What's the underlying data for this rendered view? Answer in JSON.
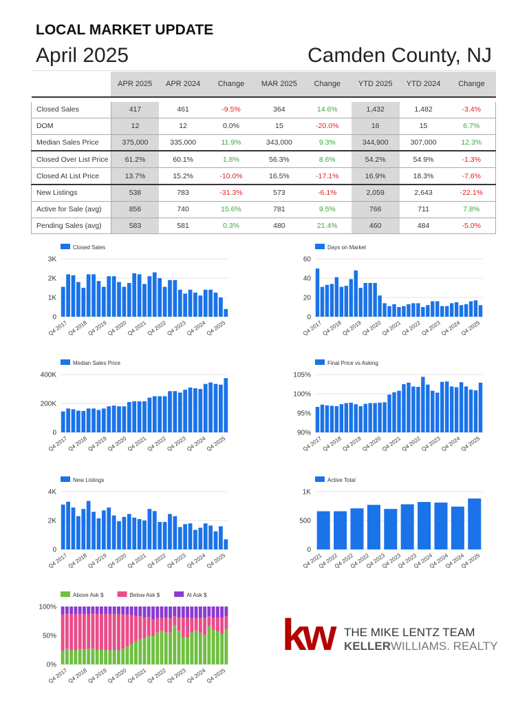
{
  "header": {
    "title": "LOCAL MARKET UPDATE",
    "month": "April 2025",
    "county": "Camden County, NJ"
  },
  "table": {
    "columns": [
      "APR 2025",
      "APR 2024",
      "Change",
      "MAR 2025",
      "Change",
      "YTD 2025",
      "YTD 2024",
      "Change"
    ],
    "rows": [
      {
        "metric": "Closed Sales",
        "values": [
          "417",
          "461",
          "-9.5%",
          "364",
          "14.6%",
          "1,432",
          "1,482",
          "-3.4%"
        ]
      },
      {
        "metric": "DOM",
        "values": [
          "12",
          "12",
          "0.0%",
          "15",
          "-20.0%",
          "16",
          "15",
          "6.7%"
        ]
      },
      {
        "metric": "Median Sales Price",
        "values": [
          "375,000",
          "335,000",
          "11.9%",
          "343,000",
          "9.3%",
          "344,900",
          "307,000",
          "12.3%"
        ]
      },
      {
        "metric": "Closed Over List Price",
        "values": [
          "61.2%",
          "60.1%",
          "1.8%",
          "56.3%",
          "8.6%",
          "54.2%",
          "54.9%",
          "-1.3%"
        ]
      },
      {
        "metric": "Closed At List Price",
        "values": [
          "13.7%",
          "15.2%",
          "-10.0%",
          "16.5%",
          "-17.1%",
          "16.9%",
          "18.3%",
          "-7.6%"
        ]
      },
      {
        "metric": "New Listings",
        "values": [
          "538",
          "783",
          "-31.3%",
          "573",
          "-6.1%",
          "2,059",
          "2,643",
          "-22.1%"
        ]
      },
      {
        "metric": "Active for Sale (avg)",
        "values": [
          "856",
          "740",
          "15.6%",
          "781",
          "9.5%",
          "766",
          "711",
          "7.8%"
        ]
      },
      {
        "metric": "Pending Sales (avg)",
        "values": [
          "583",
          "581",
          "0.3%",
          "480",
          "21.4%",
          "460",
          "484",
          "-5.0%"
        ]
      }
    ]
  },
  "colors": {
    "bar": "#1a73e8",
    "positive": "#3aa83a",
    "negative": "#e02020",
    "above": "#6fbf40",
    "below": "#ea4c89",
    "at": "#8a3ad1",
    "kw_red": "#b40101"
  },
  "chart_data": [
    {
      "type": "bar",
      "legend": "Closed Sales",
      "x_tick_labels": [
        "Q4 2017",
        "Q4 2018",
        "Q4 2019",
        "Q4 2020",
        "Q4 2021",
        "Q4 2022",
        "Q4 2023",
        "Q4 2024",
        "Q4 2025"
      ],
      "y_ticks": [
        "0",
        "1K",
        "2K",
        "3K"
      ],
      "ylim": [
        0,
        3000
      ],
      "values": [
        1550,
        2200,
        2150,
        1800,
        1500,
        2200,
        2200,
        1850,
        1550,
        2100,
        2100,
        1800,
        1550,
        1750,
        2250,
        2200,
        1700,
        2100,
        2300,
        2000,
        1550,
        1900,
        1900,
        1400,
        1200,
        1400,
        1250,
        1100,
        1400,
        1400,
        1250,
        1000,
        400
      ]
    },
    {
      "type": "bar",
      "legend": "Days on Market",
      "x_tick_labels": [
        "Q4 2017",
        "Q4 2018",
        "Q4 2019",
        "Q4 2020",
        "Q4 2021",
        "Q4 2022",
        "Q4 2023",
        "Q4 2024",
        "Q4 2025"
      ],
      "y_ticks": [
        "0",
        "20",
        "40",
        "60"
      ],
      "ylim": [
        0,
        60
      ],
      "values": [
        50,
        31,
        33,
        34,
        41,
        31,
        32,
        39,
        48,
        30,
        35,
        35,
        35,
        22,
        14,
        11,
        13,
        10,
        11,
        13,
        14,
        14,
        10,
        12,
        16,
        16,
        11,
        11,
        14,
        15,
        12,
        13,
        16,
        17,
        12
      ]
    },
    {
      "type": "bar",
      "legend": "Median Sales Price",
      "x_tick_labels": [
        "Q4 2017",
        "Q4 2018",
        "Q4 2019",
        "Q4 2020",
        "Q4 2021",
        "Q4 2022",
        "Q4 2023",
        "Q4 2024",
        "Q4 2025"
      ],
      "y_ticks": [
        "0",
        "200K",
        "400K"
      ],
      "ylim": [
        0,
        400000
      ],
      "values": [
        145000,
        165000,
        160000,
        150000,
        148000,
        165000,
        165000,
        155000,
        165000,
        180000,
        185000,
        180000,
        180000,
        210000,
        215000,
        215000,
        215000,
        240000,
        250000,
        250000,
        250000,
        285000,
        285000,
        275000,
        295000,
        310000,
        305000,
        300000,
        335000,
        345000,
        335000,
        330000,
        375000
      ]
    },
    {
      "type": "bar",
      "legend": "Final Price vs Asking",
      "x_tick_labels": [
        "Q4 2017",
        "Q4 2018",
        "Q4 2019",
        "Q4 2020",
        "Q4 2021",
        "Q4 2022",
        "Q4 2023",
        "Q4 2024",
        "Q4 2025"
      ],
      "y_ticks": [
        "90%",
        "95%",
        "100%",
        "105%"
      ],
      "ylim": [
        90,
        105
      ],
      "values": [
        96.6,
        97.2,
        97.0,
        96.9,
        96.8,
        97.3,
        97.6,
        97.7,
        97.3,
        96.8,
        97.4,
        97.6,
        97.6,
        97.7,
        97.8,
        99.8,
        100.4,
        100.8,
        102.5,
        102.9,
        101.9,
        101.8,
        104.4,
        102.4,
        100.8,
        100.3,
        103.1,
        103.2,
        101.9,
        101.7,
        103.0,
        101.9,
        101.1,
        100.9,
        102.9
      ]
    },
    {
      "type": "bar",
      "legend": "New Listings",
      "x_tick_labels": [
        "Q4 2017",
        "Q4 2018",
        "Q4 2019",
        "Q4 2020",
        "Q4 2021",
        "Q4 2022",
        "Q4 2023",
        "Q4 2024",
        "Q4 2025"
      ],
      "y_ticks": [
        "0",
        "2K",
        "4K"
      ],
      "ylim": [
        0,
        4000
      ],
      "values": [
        3100,
        3300,
        2900,
        2300,
        2800,
        3350,
        2600,
        2150,
        2700,
        2900,
        2350,
        1950,
        2250,
        2450,
        2200,
        2100,
        2000,
        2800,
        2650,
        1900,
        1900,
        2450,
        2300,
        1550,
        1750,
        1800,
        1350,
        1500,
        1800,
        1650,
        1250,
        1600,
        700
      ]
    },
    {
      "type": "bar",
      "legend": "Active Total",
      "x_tick_labels": [
        "Q4 2021",
        "Q4 2022",
        "Q4 2022",
        "Q4 2022",
        "Q4 2023",
        "Q4 2023",
        "Q4 2023",
        "Q4 2024",
        "Q4 2024",
        "Q4 2024",
        "Q4 2025"
      ],
      "y_ticks": [
        "0",
        "500",
        "1K"
      ],
      "ylim": [
        0,
        1000
      ],
      "values": [
        660,
        660,
        710,
        770,
        700,
        780,
        820,
        810,
        740,
        880
      ]
    },
    {
      "type": "bar",
      "stacked": true,
      "x_tick_labels": [
        "Q4 2017",
        "Q4 2018",
        "Q4 2019",
        "Q4 2020",
        "Q4 2021",
        "Q4 2022",
        "Q4 2023",
        "Q4 2024",
        "Q4 2025"
      ],
      "y_ticks": [
        "0%",
        "50%",
        "100%"
      ],
      "ylim": [
        0,
        100
      ],
      "series": [
        {
          "name": "Above Ask $",
          "values": [
            23,
            27,
            24,
            25,
            26,
            26,
            27,
            27,
            25,
            25,
            25,
            24,
            25,
            24,
            27,
            31,
            35,
            40,
            43,
            45,
            50,
            49,
            55,
            58,
            55,
            55,
            67,
            58,
            47,
            47,
            55,
            59,
            54,
            51,
            66,
            60,
            57,
            53,
            61
          ]
        },
        {
          "name": "Below Ask $",
          "values": [
            63,
            61,
            63,
            62,
            61,
            61,
            60,
            61,
            62,
            62,
            62,
            63,
            62,
            63,
            60,
            55,
            50,
            44,
            40,
            36,
            32,
            29,
            25,
            22,
            26,
            25,
            16,
            23,
            34,
            34,
            25,
            21,
            27,
            30,
            17,
            21,
            24,
            28,
            22
          ]
        },
        {
          "name": "At Ask $",
          "values": [
            14,
            12,
            13,
            13,
            13,
            13,
            13,
            12,
            13,
            13,
            13,
            13,
            13,
            13,
            13,
            14,
            15,
            16,
            17,
            19,
            18,
            22,
            20,
            20,
            19,
            20,
            17,
            19,
            19,
            19,
            20,
            20,
            19,
            19,
            17,
            19,
            19,
            19,
            17
          ]
        }
      ]
    }
  ],
  "logo": {
    "mark": "kw",
    "team": "THE MIKE LENTZ TEAM",
    "brand_bold": "KELLER",
    "brand_light": "WILLIAMS. REALTY"
  }
}
